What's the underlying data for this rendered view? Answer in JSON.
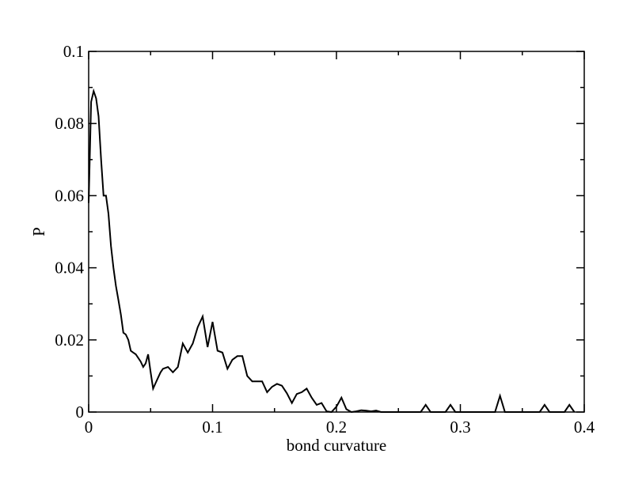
{
  "chart_data": {
    "type": "line",
    "title": "",
    "xlabel": "bond curvature",
    "ylabel": "P",
    "xlim": [
      0,
      0.4
    ],
    "ylim": [
      0,
      0.1
    ],
    "x_major_ticks": [
      0,
      0.1,
      0.2,
      0.3,
      0.4
    ],
    "x_tick_labels": [
      "0",
      "0.1",
      "0.2",
      "0.3",
      "0.4"
    ],
    "y_major_ticks": [
      0,
      0.02,
      0.04,
      0.06,
      0.08,
      0.1
    ],
    "y_tick_labels": [
      "0",
      "0.02",
      "0.04",
      "0.06",
      "0.08",
      "0.1"
    ],
    "grid": false,
    "legend": "none",
    "line_color": "#000000",
    "series": [
      {
        "x": [
          0.0,
          0.002,
          0.004,
          0.006,
          0.008,
          0.01,
          0.012,
          0.014,
          0.016,
          0.018,
          0.02,
          0.022,
          0.024,
          0.026,
          0.028,
          0.03,
          0.032,
          0.034,
          0.036,
          0.038,
          0.04,
          0.042,
          0.044,
          0.046,
          0.048,
          0.05,
          0.052,
          0.054,
          0.056,
          0.058,
          0.06,
          0.064,
          0.068,
          0.072,
          0.076,
          0.08,
          0.084,
          0.088,
          0.092,
          0.096,
          0.1,
          0.104,
          0.108,
          0.112,
          0.116,
          0.12,
          0.124,
          0.128,
          0.132,
          0.136,
          0.14,
          0.144,
          0.148,
          0.152,
          0.156,
          0.16,
          0.164,
          0.168,
          0.172,
          0.176,
          0.18,
          0.184,
          0.188,
          0.192,
          0.196,
          0.2,
          0.204,
          0.208,
          0.212,
          0.216,
          0.22,
          0.224,
          0.228,
          0.232,
          0.236,
          0.24,
          0.244,
          0.268,
          0.272,
          0.276,
          0.288,
          0.292,
          0.296,
          0.328,
          0.332,
          0.336,
          0.364,
          0.368,
          0.372,
          0.384,
          0.388,
          0.392
        ],
        "y": [
          0.058,
          0.086,
          0.089,
          0.087,
          0.082,
          0.07,
          0.06,
          0.06,
          0.055,
          0.046,
          0.04,
          0.035,
          0.031,
          0.027,
          0.022,
          0.0215,
          0.02,
          0.017,
          0.0165,
          0.016,
          0.015,
          0.014,
          0.0125,
          0.0135,
          0.016,
          0.011,
          0.0065,
          0.008,
          0.0095,
          0.011,
          0.012,
          0.0125,
          0.011,
          0.0125,
          0.019,
          0.0165,
          0.019,
          0.0235,
          0.0265,
          0.018,
          0.025,
          0.017,
          0.0165,
          0.012,
          0.0145,
          0.0155,
          0.0155,
          0.01,
          0.0085,
          0.0085,
          0.0085,
          0.0055,
          0.007,
          0.0078,
          0.0073,
          0.0052,
          0.0025,
          0.005,
          0.0055,
          0.0065,
          0.004,
          0.002,
          0.0025,
          0.0002,
          0.0,
          0.0015,
          0.004,
          0.0008,
          0.0,
          0.0002,
          0.0005,
          0.0004,
          0.0002,
          0.0004,
          0.0,
          0.0,
          0.0,
          0.0,
          0.002,
          0.0,
          0.0,
          0.002,
          0.0,
          0.0,
          0.0045,
          0.0,
          0.0,
          0.002,
          0.0,
          0.0,
          0.002,
          0.0
        ]
      }
    ]
  }
}
